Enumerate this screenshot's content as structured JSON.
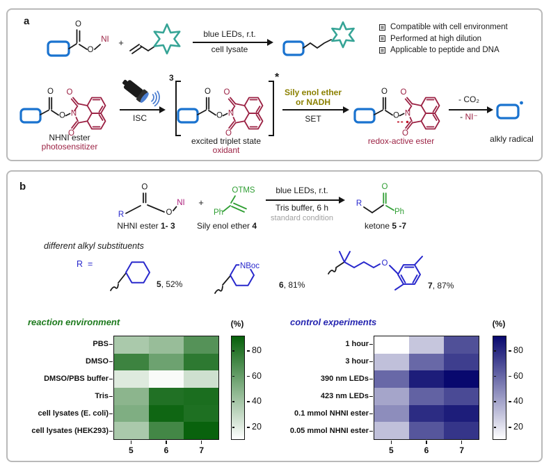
{
  "atoms": {
    "o": "O",
    "n": "N",
    "ni": "NI",
    "r": "R",
    "ph": "Ph",
    "otms": "OTMS",
    "nboc": "NBoc",
    "plus": "+"
  },
  "figure": {
    "panel_a": {
      "label": "a",
      "scheme1": {
        "cond_top": "blue LEDs, r.t.",
        "cond_bottom": "cell lysate"
      },
      "bullets": [
        "Compatible with cell environment",
        "Performed at high dilution",
        "Applicable to peptide and DNA"
      ],
      "mech": {
        "struct1_label": "NHNI ester",
        "struct1_sublabel": "photosensitizer",
        "isc": "ISC",
        "coeff": "3",
        "star": "*",
        "struct2_label": "excited triplet state",
        "struct2_sublabel": "oxidant",
        "set_line1": "Sily enol ether",
        "set_line2": "or NADH",
        "set": "SET",
        "struct3_label": "redox-active ester",
        "loss_top": "- CO₂",
        "loss_minus": "- ",
        "loss_ion": "NI⁻",
        "struct4_label": "alkly radical"
      }
    },
    "panel_b": {
      "label": "b",
      "scheme": {
        "nhni_label": "NHNI ester ",
        "nhni_num": "1- 3",
        "see_label": "Sily enol ether ",
        "see_num": "4",
        "cond_top": "blue LEDs, r.t.",
        "cond_mid": "Tris buffer, 6 h",
        "cond_note": "standard condition",
        "ketone_label": "ketone ",
        "ketone_num": "5 -7"
      },
      "substituents": {
        "heading": "different alkyl substituents",
        "r_prefix": "R  =",
        "items": [
          {
            "num": "5",
            "rest": ", 52%"
          },
          {
            "num": "6",
            "rest": ", 81%"
          },
          {
            "num": "7",
            "rest": ", 87%"
          }
        ]
      }
    }
  },
  "chart_data": [
    {
      "type": "heatmap",
      "title": "reaction environment",
      "title_color": "#1d7a1d",
      "rows": [
        "PBS",
        "DMSO",
        "DMSO/PBS buffer",
        "Tris",
        "cell lysates (E. coli)",
        "cell lysates (HEK293)"
      ],
      "columns": [
        "5",
        "6",
        "7"
      ],
      "values": [
        [
          38,
          44,
          66
        ],
        [
          74,
          58,
          79
        ],
        [
          21,
          12,
          26
        ],
        [
          48,
          83,
          85
        ],
        [
          52,
          89,
          84
        ],
        [
          38,
          72,
          91
        ]
      ],
      "colorbar_label": "(%)",
      "colorbar_ticks": [
        20,
        40,
        60,
        80
      ],
      "color_low": "#ffffff",
      "color_high": "#06600a",
      "vmin": 10,
      "vmax": 92,
      "legend_position": "right",
      "grid": false
    },
    {
      "type": "heatmap",
      "title": "control experiments",
      "title_color": "#2525b0",
      "rows": [
        "1 hour",
        "3 hour",
        "390 nm LEDs",
        "423 nm LEDs",
        "0.1 mmol NHNI ester",
        "0.05 mmol NHNI ester"
      ],
      "columns": [
        "5",
        "6",
        "7"
      ],
      "values": [
        [
          10,
          29,
          68
        ],
        [
          31,
          60,
          74
        ],
        [
          60,
          85,
          92
        ],
        [
          40,
          62,
          70
        ],
        [
          48,
          80,
          85
        ],
        [
          31,
          66,
          77
        ]
      ],
      "colorbar_label": "(%)",
      "colorbar_ticks": [
        20,
        40,
        60,
        80
      ],
      "color_low": "#ffffff",
      "color_high": "#08086e",
      "vmin": 10,
      "vmax": 92,
      "legend_position": "right",
      "grid": false
    }
  ]
}
